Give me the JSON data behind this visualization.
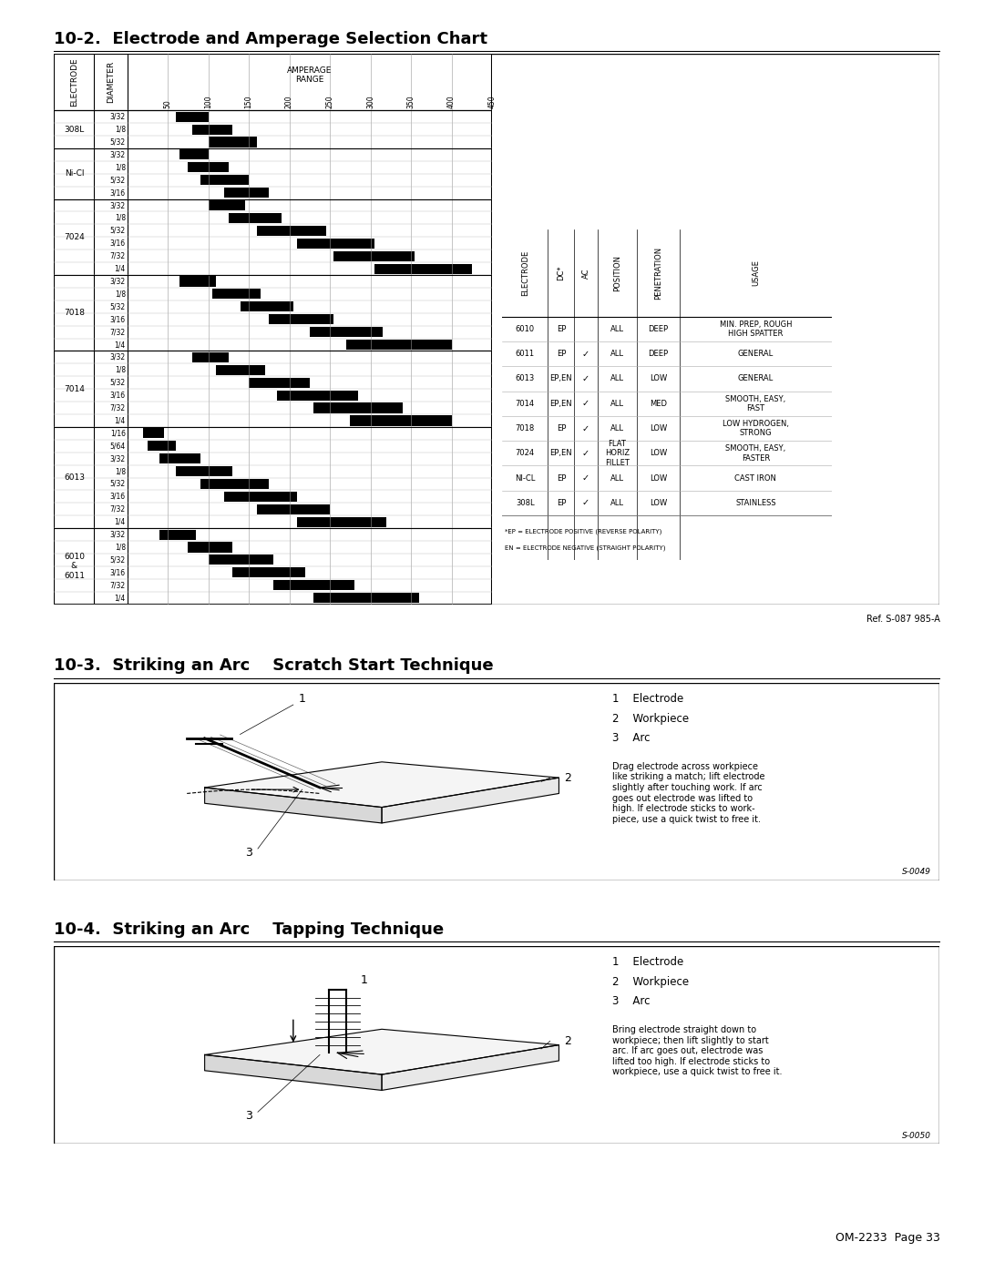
{
  "page_title_section": "10-2.  Electrode and Amperage Selection Chart",
  "section2_title": "10-3.  Striking an Arc    Scratch Start Technique",
  "section3_title": "10-4.  Striking an Arc    Tapping Technique",
  "footer": "OM-2233  Page 33",
  "ref_label": "Ref. S-087 985-A",
  "s0049": "S-0049",
  "s0050": "S-0050",
  "amperage_ticks": [
    50,
    100,
    150,
    200,
    250,
    300,
    350,
    400,
    450
  ],
  "electrode_groups": [
    {
      "name": "6010\n&\n6011",
      "diameters": [
        "3/32",
        "1/8",
        "5/32",
        "3/16",
        "7/32",
        "1/4"
      ],
      "ranges": [
        [
          40,
          85
        ],
        [
          75,
          130
        ],
        [
          100,
          180
        ],
        [
          130,
          220
        ],
        [
          180,
          280
        ],
        [
          230,
          360
        ]
      ]
    },
    {
      "name": "6013",
      "diameters": [
        "1/16",
        "5/64",
        "3/32",
        "1/8",
        "5/32",
        "3/16",
        "7/32",
        "1/4"
      ],
      "ranges": [
        [
          20,
          45
        ],
        [
          25,
          60
        ],
        [
          40,
          90
        ],
        [
          60,
          130
        ],
        [
          90,
          175
        ],
        [
          120,
          210
        ],
        [
          160,
          250
        ],
        [
          210,
          320
        ]
      ]
    },
    {
      "name": "7014",
      "diameters": [
        "3/32",
        "1/8",
        "5/32",
        "3/16",
        "7/32",
        "1/4"
      ],
      "ranges": [
        [
          80,
          125
        ],
        [
          110,
          170
        ],
        [
          150,
          225
        ],
        [
          185,
          285
        ],
        [
          230,
          340
        ],
        [
          275,
          400
        ]
      ]
    },
    {
      "name": "7018",
      "diameters": [
        "3/32",
        "1/8",
        "5/32",
        "3/16",
        "7/32",
        "1/4"
      ],
      "ranges": [
        [
          65,
          110
        ],
        [
          105,
          165
        ],
        [
          140,
          205
        ],
        [
          175,
          255
        ],
        [
          225,
          315
        ],
        [
          270,
          400
        ]
      ]
    },
    {
      "name": "7024",
      "diameters": [
        "3/32",
        "1/8",
        "5/32",
        "3/16",
        "7/32",
        "1/4"
      ],
      "ranges": [
        [
          100,
          145
        ],
        [
          125,
          190
        ],
        [
          160,
          245
        ],
        [
          210,
          305
        ],
        [
          255,
          355
        ],
        [
          305,
          425
        ]
      ]
    },
    {
      "name": "Ni-Cl",
      "diameters": [
        "3/32",
        "1/8",
        "5/32",
        "3/16"
      ],
      "ranges": [
        [
          65,
          100
        ],
        [
          75,
          125
        ],
        [
          90,
          150
        ],
        [
          120,
          175
        ]
      ]
    },
    {
      "name": "308L",
      "diameters": [
        "3/32",
        "1/8",
        "5/32"
      ],
      "ranges": [
        [
          60,
          100
        ],
        [
          80,
          130
        ],
        [
          100,
          160
        ]
      ]
    }
  ],
  "right_table": {
    "headers": [
      "ELECTRODE",
      "DC*",
      "AC",
      "POSITION",
      "PENETRATION",
      "USAGE"
    ],
    "rows": [
      [
        "6010",
        "EP",
        "",
        "ALL",
        "DEEP",
        "MIN. PREP, ROUGH\nHIGH SPATTER"
      ],
      [
        "6011",
        "EP",
        "check",
        "ALL",
        "DEEP",
        "GENERAL"
      ],
      [
        "6013",
        "EP,EN",
        "check",
        "ALL",
        "LOW",
        "GENERAL"
      ],
      [
        "7014",
        "EP,EN",
        "check",
        "ALL",
        "MED",
        "SMOOTH, EASY,\nFAST"
      ],
      [
        "7018",
        "EP",
        "check",
        "ALL",
        "LOW",
        "LOW HYDROGEN,\nSTRONG"
      ],
      [
        "7024",
        "EP,EN",
        "check",
        "FLAT\nHORIZ\nFILLET",
        "LOW",
        "SMOOTH, EASY,\nFASTER"
      ],
      [
        "NI-CL",
        "EP",
        "check",
        "ALL",
        "LOW",
        "CAST IRON"
      ],
      [
        "308L",
        "EP",
        "check",
        "ALL",
        "LOW",
        "STAINLESS"
      ]
    ],
    "footnote1": "*EP = ELECTRODE POSITIVE (REVERSE POLARITY)",
    "footnote2": "EN = ELECTRODE NEGATIVE (STRAIGHT POLARITY)"
  },
  "scratch_legend_items": [
    "1    Electrode",
    "2    Workpiece",
    "3    Arc"
  ],
  "scratch_description": "Drag electrode across workpiece\nlike striking a match; lift electrode\nslightly after touching work. If arc\ngoes out electrode was lifted to\nhigh. If electrode sticks to work-\npiece, use a quick twist to free it.",
  "tapping_legend_items": [
    "1    Electrode",
    "2    Workpiece",
    "3    Arc"
  ],
  "tapping_description": "Bring electrode straight down to\nworkpiece; then lift slightly to start\narc. If arc goes out, electrode was\nlifted too high. If electrode sticks to\nworkpiece, use a quick twist to free it.",
  "bg_color": "#ffffff",
  "text_color": "#000000"
}
